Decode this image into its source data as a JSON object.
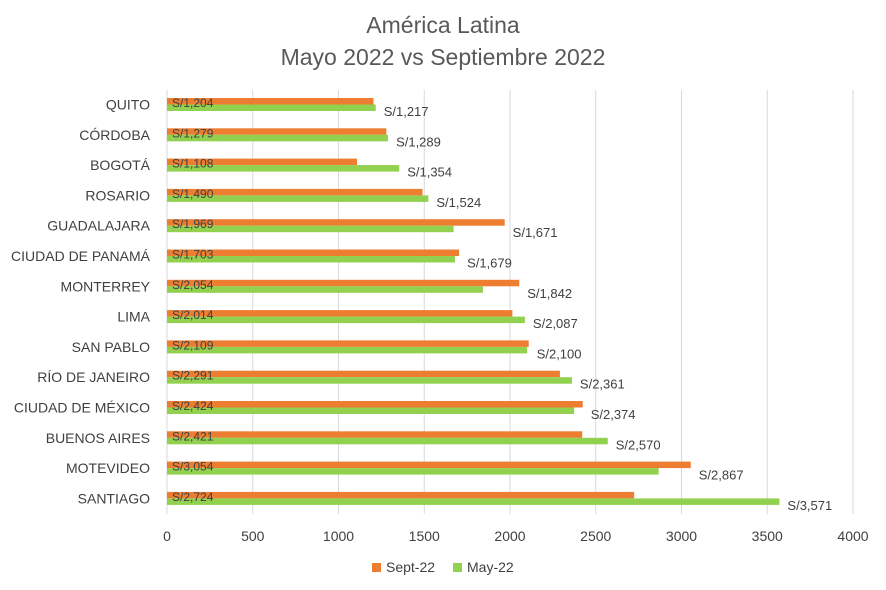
{
  "colors": {
    "sept": "#ED7D31",
    "may": "#92D050",
    "grid": "#D9D9D9",
    "text": "#404040",
    "title": "#595959"
  },
  "chart_data": {
    "type": "bar",
    "orientation": "horizontal",
    "title": "América Latina",
    "subtitle": "Mayo 2022 vs Septiembre 2022",
    "xlabel": "",
    "ylabel": "",
    "xlim": [
      0,
      4000
    ],
    "x_ticks": [
      "0",
      "500",
      "1000",
      "1500",
      "2000",
      "2500",
      "3000",
      "3500",
      "4000"
    ],
    "grid": "vertical",
    "legend_position": "bottom",
    "categories": [
      "QUITO",
      "CÓRDOBA",
      "BOGOTÁ",
      "ROSARIO",
      "GUADALAJARA",
      "CIUDAD DE PANAMÁ",
      "MONTERREY",
      "LIMA",
      "SAN PABLO",
      "RÍO DE JANEIRO",
      "CIUDAD DE MÉXICO",
      "BUENOS AIRES",
      "MOTEVIDEO",
      "SANTIAGO"
    ],
    "series": [
      {
        "name": "Sept-22",
        "values": [
          1204,
          1279,
          1108,
          1490,
          1969,
          1703,
          2054,
          2014,
          2109,
          2291,
          2424,
          2421,
          3054,
          2724
        ],
        "labels": [
          "S/1,204",
          "S/1,279",
          "S/1,108",
          "S/1,490",
          "S/1,969",
          "S/1,703",
          "S/2,054",
          "S/2,014",
          "S/2,109",
          "S/2,291",
          "S/2,424",
          "S/2,421",
          "S/3,054",
          "S/2,724"
        ]
      },
      {
        "name": "May-22",
        "values": [
          1217,
          1289,
          1354,
          1524,
          1671,
          1679,
          1842,
          2087,
          2100,
          2361,
          2374,
          2570,
          2867,
          3571
        ],
        "labels": [
          "S/1,217",
          "S/1,289",
          "S/1,354",
          "S/1,524",
          "S/1,671",
          "S/1,679",
          "S/1,842",
          "S/2,087",
          "S/2,100",
          "S/2,361",
          "S/2,374",
          "S/2,570",
          "S/2,867",
          "S/3,571"
        ]
      }
    ]
  }
}
